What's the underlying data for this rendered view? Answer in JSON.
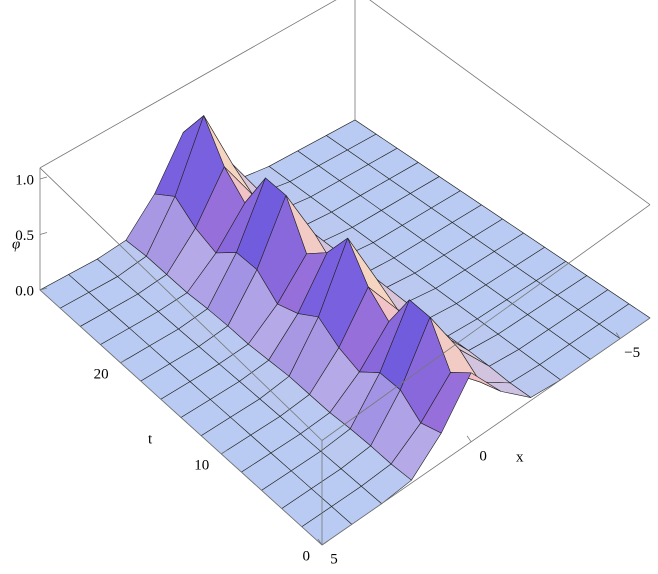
{
  "chart_data": {
    "type": "surface3d",
    "zlabel": "φ",
    "ylabel": "t",
    "xlabel": "x",
    "x": [
      -6,
      -5,
      -4,
      -3,
      -2,
      -1,
      0,
      1,
      2,
      3,
      4,
      5
    ],
    "t": [
      0,
      2,
      4,
      6,
      8,
      10,
      12,
      14,
      16,
      18,
      20,
      22,
      24,
      26,
      28
    ],
    "z": [
      [
        0,
        0,
        0,
        0,
        0.03,
        0.3,
        0.7,
        0.3,
        0.03,
        0,
        0,
        0
      ],
      [
        0,
        0,
        0,
        0,
        0.02,
        0.23,
        0.53,
        0.23,
        0.02,
        0,
        0,
        0
      ],
      [
        0,
        0,
        0,
        0,
        0.03,
        0.39,
        0.91,
        0.39,
        0.03,
        0,
        0,
        0
      ],
      [
        0,
        0,
        0,
        0,
        0.03,
        0.39,
        0.91,
        0.39,
        0.03,
        0,
        0,
        0
      ],
      [
        0,
        0,
        0,
        0,
        0.02,
        0.23,
        0.53,
        0.23,
        0.02,
        0,
        0,
        0
      ],
      [
        0,
        0,
        0,
        0,
        0.03,
        0.3,
        0.7,
        0.3,
        0.03,
        0,
        0,
        0
      ],
      [
        0,
        0,
        0,
        0,
        0.04,
        0.43,
        1,
        0.43,
        0.04,
        0,
        0,
        0
      ],
      [
        0,
        0,
        0,
        0,
        0.03,
        0.3,
        0.7,
        0.3,
        0.03,
        0,
        0,
        0
      ],
      [
        0,
        0,
        0,
        0,
        0.02,
        0.23,
        0.53,
        0.23,
        0.02,
        0,
        0,
        0
      ],
      [
        0,
        0,
        0,
        0,
        0.03,
        0.39,
        0.91,
        0.39,
        0.03,
        0,
        0,
        0
      ],
      [
        0,
        0,
        0,
        0,
        0.03,
        0.39,
        0.91,
        0.39,
        0.03,
        0,
        0,
        0
      ],
      [
        0,
        0,
        0,
        0,
        0.02,
        0.23,
        0.53,
        0.23,
        0.02,
        0,
        0,
        0
      ],
      [
        0,
        0,
        0,
        0,
        0.03,
        0.3,
        0.7,
        0.3,
        0.03,
        0,
        0,
        0
      ],
      [
        0,
        0,
        0,
        0,
        0.04,
        0.43,
        1,
        0.43,
        0.04,
        0,
        0,
        0
      ],
      [
        0,
        0,
        0,
        0,
        0.03,
        0.3,
        0.7,
        0.3,
        0.03,
        0,
        0,
        0
      ]
    ],
    "xlim": [
      -6,
      5
    ],
    "ylim": [
      0,
      28
    ],
    "zlim": [
      0,
      1.1
    ],
    "xticks": [
      5,
      0,
      {
        "value": -5,
        "label": "−5"
      }
    ],
    "yticks": [
      0,
      10,
      20
    ],
    "zticks": [
      {
        "value": 0,
        "label": "0.0"
      },
      {
        "value": 0.5,
        "label": "0.5"
      },
      {
        "value": 1,
        "label": "1.0"
      }
    ],
    "color": "#b9cbf2"
  }
}
